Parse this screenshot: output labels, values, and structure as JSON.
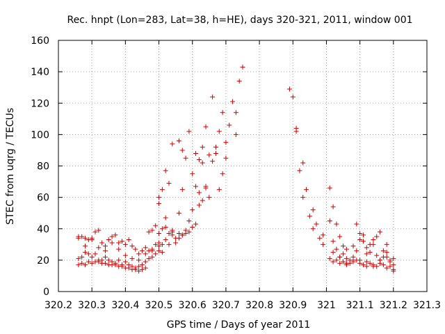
{
  "chart_data": {
    "type": "scatter",
    "title": "Rec. hnpt (Lon=283, Lat=38, h=HE), days 320-321, 2011, window 001",
    "xlabel": "GPS time / Days of year 2011",
    "ylabel": "STEC from uqrg / TECUs",
    "xlim": [
      320.2,
      321.3
    ],
    "ylim": [
      0,
      160
    ],
    "xticks": [
      "320.2",
      "320.3",
      "320.4",
      "320.5",
      "320.6",
      "320.7",
      "320.8",
      "320.9",
      "321",
      "321.1",
      "321.2",
      "321.3"
    ],
    "yticks": [
      "0",
      "20",
      "40",
      "60",
      "80",
      "100",
      "120",
      "140",
      "160"
    ],
    "grid": true,
    "marker": "+",
    "color": "#cc0000",
    "points": [
      [
        320.26,
        34
      ],
      [
        320.27,
        35
      ],
      [
        320.28,
        34
      ],
      [
        320.29,
        33
      ],
      [
        320.3,
        34
      ],
      [
        320.31,
        38
      ],
      [
        320.32,
        39
      ],
      [
        320.33,
        31
      ],
      [
        320.34,
        29
      ],
      [
        320.35,
        33
      ],
      [
        320.36,
        35
      ],
      [
        320.37,
        36
      ],
      [
        320.38,
        31
      ],
      [
        320.39,
        32
      ],
      [
        320.4,
        30
      ],
      [
        320.41,
        33
      ],
      [
        320.42,
        29
      ],
      [
        320.43,
        27
      ],
      [
        320.44,
        24
      ],
      [
        320.45,
        26
      ],
      [
        320.46,
        28
      ],
      [
        320.47,
        38
      ],
      [
        320.48,
        39
      ],
      [
        320.49,
        42
      ],
      [
        320.5,
        37
      ],
      [
        320.51,
        40
      ],
      [
        320.52,
        41
      ],
      [
        320.53,
        37
      ],
      [
        320.54,
        36
      ],
      [
        320.55,
        34
      ],
      [
        320.56,
        34
      ],
      [
        320.57,
        36
      ],
      [
        320.26,
        21
      ],
      [
        320.27,
        22
      ],
      [
        320.28,
        25
      ],
      [
        320.29,
        24
      ],
      [
        320.3,
        22
      ],
      [
        320.31,
        24
      ],
      [
        320.32,
        20
      ],
      [
        320.33,
        20
      ],
      [
        320.34,
        22
      ],
      [
        320.35,
        20
      ],
      [
        320.36,
        19
      ],
      [
        320.37,
        18
      ],
      [
        320.38,
        20
      ],
      [
        320.39,
        17
      ],
      [
        320.4,
        19
      ],
      [
        320.41,
        17
      ],
      [
        320.42,
        16
      ],
      [
        320.43,
        15
      ],
      [
        320.44,
        16
      ],
      [
        320.45,
        17
      ],
      [
        320.46,
        19
      ],
      [
        320.47,
        26
      ],
      [
        320.48,
        27
      ],
      [
        320.49,
        30
      ],
      [
        320.5,
        29
      ],
      [
        320.51,
        30
      ],
      [
        320.26,
        17
      ],
      [
        320.27,
        18
      ],
      [
        320.28,
        17
      ],
      [
        320.29,
        19
      ],
      [
        320.3,
        18
      ],
      [
        320.31,
        19
      ],
      [
        320.32,
        19
      ],
      [
        320.33,
        18
      ],
      [
        320.34,
        18
      ],
      [
        320.35,
        17
      ],
      [
        320.36,
        17
      ],
      [
        320.37,
        17
      ],
      [
        320.38,
        16
      ],
      [
        320.39,
        16
      ],
      [
        320.4,
        15
      ],
      [
        320.41,
        15
      ],
      [
        320.42,
        14
      ],
      [
        320.43,
        14
      ],
      [
        320.44,
        13
      ],
      [
        320.45,
        14
      ],
      [
        320.46,
        15
      ],
      [
        320.47,
        21
      ],
      [
        320.48,
        22
      ],
      [
        320.49,
        24
      ],
      [
        320.5,
        26
      ],
      [
        320.51,
        25
      ],
      [
        320.26,
        35
      ],
      [
        320.28,
        29
      ],
      [
        320.3,
        33
      ],
      [
        320.32,
        28
      ],
      [
        320.34,
        26
      ],
      [
        320.36,
        31
      ],
      [
        320.38,
        27
      ],
      [
        320.4,
        23
      ],
      [
        320.42,
        21
      ],
      [
        320.44,
        20
      ],
      [
        320.46,
        24
      ],
      [
        320.48,
        26
      ],
      [
        320.5,
        31
      ],
      [
        320.5,
        60
      ],
      [
        320.51,
        65
      ],
      [
        320.52,
        77
      ],
      [
        320.53,
        69
      ],
      [
        320.54,
        94
      ],
      [
        320.56,
        96
      ],
      [
        320.57,
        90
      ],
      [
        320.58,
        85
      ],
      [
        320.59,
        102
      ],
      [
        320.6,
        75
      ],
      [
        320.61,
        88
      ],
      [
        320.62,
        84
      ],
      [
        320.63,
        92
      ],
      [
        320.64,
        105
      ],
      [
        320.65,
        87
      ],
      [
        320.66,
        124
      ],
      [
        320.67,
        92
      ],
      [
        320.68,
        102
      ],
      [
        320.69,
        114
      ],
      [
        320.7,
        95
      ],
      [
        320.71,
        106
      ],
      [
        320.72,
        121
      ],
      [
        320.73,
        100
      ],
      [
        320.74,
        134
      ],
      [
        320.75,
        143
      ],
      [
        320.5,
        56
      ],
      [
        320.52,
        47
      ],
      [
        320.54,
        39
      ],
      [
        320.56,
        50
      ],
      [
        320.57,
        65
      ],
      [
        320.58,
        37
      ],
      [
        320.59,
        45
      ],
      [
        320.6,
        52
      ],
      [
        320.61,
        67
      ],
      [
        320.62,
        63
      ],
      [
        320.63,
        82
      ],
      [
        320.64,
        66
      ],
      [
        320.65,
        60
      ],
      [
        320.66,
        83
      ],
      [
        320.67,
        88
      ],
      [
        320.68,
        65
      ],
      [
        320.69,
        75
      ],
      [
        320.7,
        85
      ],
      [
        320.73,
        114
      ],
      [
        320.52,
        33
      ],
      [
        320.53,
        30
      ],
      [
        320.54,
        38
      ],
      [
        320.55,
        31
      ],
      [
        320.56,
        37
      ],
      [
        320.57,
        36
      ],
      [
        320.58,
        39
      ],
      [
        320.59,
        38
      ],
      [
        320.6,
        41
      ],
      [
        320.61,
        43
      ],
      [
        320.62,
        55
      ],
      [
        320.63,
        58
      ],
      [
        320.64,
        67
      ],
      [
        320.89,
        129
      ],
      [
        320.9,
        124
      ],
      [
        320.91,
        104
      ],
      [
        320.92,
        77
      ],
      [
        320.93,
        82
      ],
      [
        320.94,
        65
      ],
      [
        320.95,
        48
      ],
      [
        320.96,
        52
      ],
      [
        320.97,
        43
      ],
      [
        320.98,
        34
      ],
      [
        320.99,
        36
      ],
      [
        321.01,
        66
      ],
      [
        321.02,
        54
      ],
      [
        321.03,
        43
      ],
      [
        321.04,
        35
      ],
      [
        321.05,
        29
      ],
      [
        321.06,
        27
      ],
      [
        321.08,
        29
      ],
      [
        321.09,
        43
      ],
      [
        321.1,
        37
      ],
      [
        321.11,
        32
      ],
      [
        321.12,
        28
      ],
      [
        321.13,
        30
      ],
      [
        321.14,
        33
      ],
      [
        321.15,
        35
      ],
      [
        321.16,
        38
      ],
      [
        321.17,
        26
      ],
      [
        321.18,
        30
      ],
      [
        321.19,
        20
      ],
      [
        321.2,
        21
      ],
      [
        320.91,
        102
      ],
      [
        320.93,
        60
      ],
      [
        320.96,
        40
      ],
      [
        320.99,
        30
      ],
      [
        321.01,
        45
      ],
      [
        321.02,
        32
      ],
      [
        321.03,
        27
      ],
      [
        321.04,
        22
      ],
      [
        321.05,
        24
      ],
      [
        321.06,
        21
      ],
      [
        321.07,
        20
      ],
      [
        321.08,
        22
      ],
      [
        321.09,
        26
      ],
      [
        321.1,
        33
      ],
      [
        321.11,
        36
      ],
      [
        321.12,
        24
      ],
      [
        321.13,
        25
      ],
      [
        321.14,
        30
      ],
      [
        321.15,
        23
      ],
      [
        321.16,
        20
      ],
      [
        321.17,
        22
      ],
      [
        321.18,
        25
      ],
      [
        321.19,
        16
      ],
      [
        321.2,
        14
      ],
      [
        321.01,
        21
      ],
      [
        321.02,
        19
      ],
      [
        321.03,
        20
      ],
      [
        321.04,
        18
      ],
      [
        321.05,
        19
      ],
      [
        321.06,
        17
      ],
      [
        321.07,
        18
      ],
      [
        321.08,
        19
      ],
      [
        321.09,
        20
      ],
      [
        321.1,
        18
      ],
      [
        321.11,
        17
      ],
      [
        321.12,
        16
      ],
      [
        321.13,
        18
      ],
      [
        321.14,
        17
      ],
      [
        321.15,
        16
      ],
      [
        321.16,
        18
      ],
      [
        321.17,
        17
      ],
      [
        321.18,
        15
      ],
      [
        321.19,
        19
      ],
      [
        321.2,
        13
      ],
      [
        321.02,
        25
      ],
      [
        321.04,
        22
      ],
      [
        321.06,
        18
      ],
      [
        321.08,
        20
      ],
      [
        321.1,
        20
      ],
      [
        321.12,
        19
      ],
      [
        321.14,
        16
      ],
      [
        321.16,
        20
      ],
      [
        321.18,
        22
      ],
      [
        321.2,
        17
      ]
    ]
  }
}
